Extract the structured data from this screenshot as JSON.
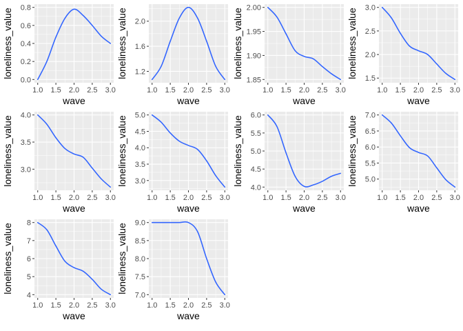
{
  "figure": {
    "background": "#FFFFFF",
    "panel_background": "#EBEBEB",
    "grid_major_color": "#FFFFFF",
    "line_color": "#3366FF"
  },
  "chart_data": [
    {
      "type": "line",
      "xlabel": "wave",
      "ylabel": "loneliness_value",
      "xlim": [
        1.0,
        3.0
      ],
      "ylim": [
        0.0,
        0.8
      ],
      "xticks": [
        "1.0",
        "1.5",
        "2.0",
        "2.5",
        "3.0"
      ],
      "yticks": [
        "0.0",
        "0.2",
        "0.4",
        "0.6",
        "0.8"
      ],
      "series": [
        {
          "x": [
            1.0,
            1.25,
            1.5,
            1.75,
            2.0,
            2.25,
            2.5,
            2.75,
            3.0
          ],
          "y": [
            0.0,
            0.2,
            0.47,
            0.68,
            0.78,
            0.71,
            0.6,
            0.48,
            0.4
          ]
        }
      ]
    },
    {
      "type": "line",
      "xlabel": "wave",
      "ylabel": "loneliness_value",
      "xlim": [
        1.0,
        3.0
      ],
      "ylim": [
        1.07,
        2.22
      ],
      "xticks": [
        "1.0",
        "1.5",
        "2.0",
        "2.5",
        "3.0"
      ],
      "yticks": [
        "1.2",
        "1.6",
        "2.0"
      ],
      "series": [
        {
          "x": [
            1.0,
            1.25,
            1.5,
            1.75,
            2.0,
            2.25,
            2.5,
            2.75,
            3.0
          ],
          "y": [
            1.07,
            1.28,
            1.68,
            2.05,
            2.22,
            2.05,
            1.68,
            1.28,
            1.07
          ]
        }
      ]
    },
    {
      "type": "line",
      "xlabel": "wave",
      "ylabel": "loneliness_value",
      "xlim": [
        1.0,
        3.0
      ],
      "ylim": [
        1.85,
        2.0
      ],
      "xticks": [
        "1.0",
        "1.5",
        "2.0",
        "2.5",
        "3.0"
      ],
      "yticks": [
        "1.85",
        "1.90",
        "1.95",
        "2.00"
      ],
      "series": [
        {
          "x": [
            1.0,
            1.25,
            1.5,
            1.75,
            2.0,
            2.25,
            2.5,
            2.75,
            3.0
          ],
          "y": [
            2.0,
            1.98,
            1.945,
            1.91,
            1.898,
            1.893,
            1.877,
            1.862,
            1.85
          ]
        }
      ]
    },
    {
      "type": "line",
      "xlabel": "wave",
      "ylabel": "loneliness_value",
      "xlim": [
        1.0,
        3.0
      ],
      "ylim": [
        1.47,
        3.0
      ],
      "xticks": [
        "1.0",
        "1.5",
        "2.0",
        "2.5",
        "3.0"
      ],
      "yticks": [
        "1.5",
        "2.0",
        "2.5",
        "3.0"
      ],
      "series": [
        {
          "x": [
            1.0,
            1.25,
            1.5,
            1.75,
            2.0,
            2.25,
            2.5,
            2.75,
            3.0
          ],
          "y": [
            3.0,
            2.78,
            2.45,
            2.18,
            2.08,
            2.0,
            1.8,
            1.6,
            1.47
          ]
        }
      ]
    },
    {
      "type": "line",
      "xlabel": "wave",
      "ylabel": "loneliness_value",
      "xlim": [
        1.0,
        3.0
      ],
      "ylim": [
        2.67,
        4.0
      ],
      "xticks": [
        "1.0",
        "1.5",
        "2.0",
        "2.5",
        "3.0"
      ],
      "yticks": [
        "3.0",
        "3.5",
        "4.0"
      ],
      "series": [
        {
          "x": [
            1.0,
            1.25,
            1.5,
            1.75,
            2.0,
            2.25,
            2.5,
            2.75,
            3.0
          ],
          "y": [
            4.0,
            3.83,
            3.58,
            3.38,
            3.28,
            3.22,
            3.02,
            2.82,
            2.67
          ]
        }
      ]
    },
    {
      "type": "line",
      "xlabel": "wave",
      "ylabel": "loneliness_value",
      "xlim": [
        1.0,
        3.0
      ],
      "ylim": [
        2.8,
        5.0
      ],
      "xticks": [
        "1.0",
        "1.5",
        "2.0",
        "2.5",
        "3.0"
      ],
      "yticks": [
        "3.0",
        "3.5",
        "4.0",
        "4.5",
        "5.0"
      ],
      "series": [
        {
          "x": [
            1.0,
            1.25,
            1.5,
            1.75,
            2.0,
            2.25,
            2.5,
            2.75,
            3.0
          ],
          "y": [
            5.0,
            4.78,
            4.45,
            4.2,
            4.07,
            3.95,
            3.6,
            3.15,
            2.8
          ]
        }
      ]
    },
    {
      "type": "line",
      "xlabel": "wave",
      "ylabel": "loneliness_value",
      "xlim": [
        1.0,
        3.0
      ],
      "ylim": [
        4.0,
        6.0
      ],
      "xticks": [
        "1.0",
        "1.5",
        "2.0",
        "2.5",
        "3.0"
      ],
      "yticks": [
        "4.0",
        "4.5",
        "5.0",
        "5.5",
        "6.0"
      ],
      "series": [
        {
          "x": [
            1.0,
            1.25,
            1.5,
            1.75,
            2.0,
            2.25,
            2.5,
            2.75,
            3.0
          ],
          "y": [
            6.0,
            5.68,
            4.95,
            4.3,
            4.02,
            4.06,
            4.16,
            4.3,
            4.38
          ]
        }
      ]
    },
    {
      "type": "line",
      "xlabel": "wave",
      "ylabel": "loneliness_value",
      "xlim": [
        1.0,
        3.0
      ],
      "ylim": [
        4.75,
        7.0
      ],
      "xticks": [
        "1.0",
        "1.5",
        "2.0",
        "2.5",
        "3.0"
      ],
      "yticks": [
        "5.0",
        "5.5",
        "6.0",
        "6.5",
        "7.0"
      ],
      "series": [
        {
          "x": [
            1.0,
            1.25,
            1.5,
            1.75,
            2.0,
            2.25,
            2.5,
            2.75,
            3.0
          ],
          "y": [
            7.0,
            6.75,
            6.35,
            5.98,
            5.83,
            5.72,
            5.35,
            4.98,
            4.75
          ]
        }
      ]
    },
    {
      "type": "line",
      "xlabel": "wave",
      "ylabel": "loneliness_value",
      "xlim": [
        1.0,
        3.0
      ],
      "ylim": [
        4.0,
        8.0
      ],
      "xticks": [
        "1.0",
        "1.5",
        "2.0",
        "2.5",
        "3.0"
      ],
      "yticks": [
        "4",
        "5",
        "6",
        "7",
        "8"
      ],
      "series": [
        {
          "x": [
            1.0,
            1.25,
            1.5,
            1.75,
            2.0,
            2.25,
            2.5,
            2.75,
            3.0
          ],
          "y": [
            8.0,
            7.6,
            6.7,
            5.85,
            5.5,
            5.3,
            4.85,
            4.3,
            4.0
          ]
        }
      ]
    },
    {
      "type": "line",
      "xlabel": "wave",
      "ylabel": "loneliness_value",
      "xlim": [
        1.0,
        3.0
      ],
      "ylim": [
        7.0,
        9.0
      ],
      "xticks": [
        "1.0",
        "1.5",
        "2.0",
        "2.5",
        "3.0"
      ],
      "yticks": [
        "7.0",
        "7.5",
        "8.0",
        "8.5",
        "9.0"
      ],
      "series": [
        {
          "x": [
            1.0,
            1.25,
            1.5,
            1.75,
            2.0,
            2.25,
            2.5,
            2.75,
            3.0
          ],
          "y": [
            9.0,
            9.0,
            9.0,
            9.0,
            9.0,
            8.75,
            8.0,
            7.35,
            7.0
          ]
        }
      ]
    }
  ]
}
